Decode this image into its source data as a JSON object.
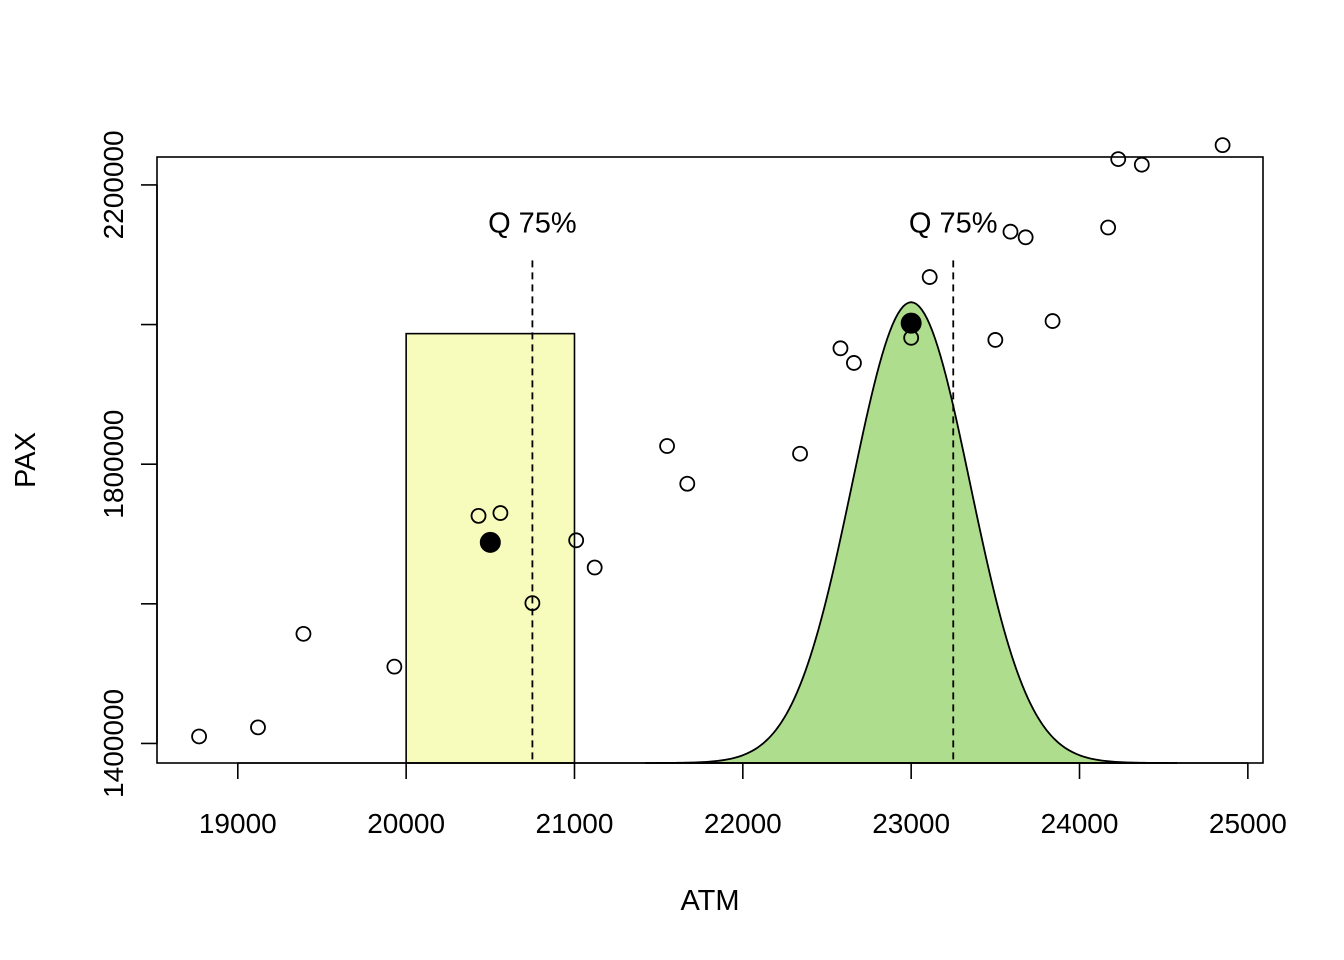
{
  "chart_data": {
    "type": "scatter",
    "title": "",
    "xlabel": "ATM",
    "ylabel": "PAX",
    "xlim": [
      18520,
      25090
    ],
    "ylim": [
      1372000,
      2240000
    ],
    "x_ticks": [
      19000,
      20000,
      21000,
      22000,
      23000,
      24000,
      25000
    ],
    "x_tick_labels": [
      "19000",
      "20000",
      "21000",
      "22000",
      "23000",
      "24000",
      "25000"
    ],
    "y_ticks": [
      1400000,
      1600000,
      1800000,
      2000000,
      2200000
    ],
    "y_tick_labels": [
      "1400000",
      "",
      "1800000",
      "",
      "2200000"
    ],
    "grid": false,
    "points": [
      {
        "x": 18770,
        "y": 1410000
      },
      {
        "x": 19120,
        "y": 1423000
      },
      {
        "x": 19390,
        "y": 1557000
      },
      {
        "x": 19930,
        "y": 1510000
      },
      {
        "x": 20430,
        "y": 1726000
      },
      {
        "x": 20560,
        "y": 1730000
      },
      {
        "x": 20750,
        "y": 1601000
      },
      {
        "x": 21010,
        "y": 1691000
      },
      {
        "x": 21120,
        "y": 1652000
      },
      {
        "x": 21550,
        "y": 1826000
      },
      {
        "x": 21670,
        "y": 1772000
      },
      {
        "x": 22340,
        "y": 1815000
      },
      {
        "x": 22580,
        "y": 1966000
      },
      {
        "x": 22660,
        "y": 1945000
      },
      {
        "x": 23000,
        "y": 1981000
      },
      {
        "x": 23110,
        "y": 2068000
      },
      {
        "x": 23500,
        "y": 1978000
      },
      {
        "x": 23590,
        "y": 2133000
      },
      {
        "x": 23680,
        "y": 2125000
      },
      {
        "x": 23840,
        "y": 2005000
      },
      {
        "x": 24170,
        "y": 2139000
      },
      {
        "x": 24230,
        "y": 2237000
      },
      {
        "x": 24370,
        "y": 2229000
      },
      {
        "x": 24850,
        "y": 2257000
      }
    ],
    "highlight_points": [
      {
        "x": 20500,
        "y": 1688000
      },
      {
        "x": 23000,
        "y": 2002000
      }
    ],
    "uniform_band": {
      "x_min": 20000,
      "x_max": 21000,
      "height": 1987000,
      "color": "#f7fbbb"
    },
    "normal_curve": {
      "mean": 23000,
      "sd": 350,
      "peak": 2032000,
      "color": "#aedd8e"
    },
    "quantile_lines": [
      {
        "x": 20750,
        "y_top": 2092000,
        "label": "Q 75%"
      },
      {
        "x": 23250,
        "y_top": 2092000,
        "label": "Q 75%"
      }
    ]
  }
}
